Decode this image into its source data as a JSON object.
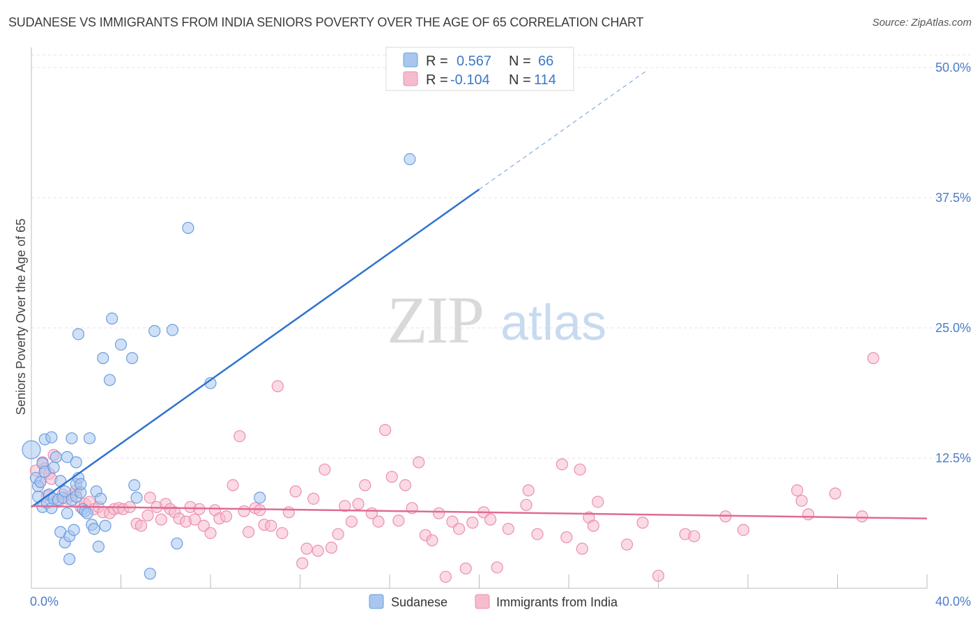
{
  "header": {
    "title": "SUDANESE VS IMMIGRANTS FROM INDIA SENIORS POVERTY OVER THE AGE OF 65 CORRELATION CHART",
    "source": "Source: ZipAtlas.com"
  },
  "watermark": {
    "zip": "ZIP",
    "atlas": "atlas"
  },
  "colors": {
    "sudanese_fill": "#a9c6ef",
    "sudanese_stroke": "#6a9ee0",
    "sudanese_line": "#2f72d0",
    "india_fill": "#f6bccd",
    "india_stroke": "#ec8fac",
    "india_line": "#e06a93",
    "accent_text": "#3c78c8"
  },
  "legend": {
    "r_label": "R =",
    "n_label": "N =",
    "rows": [
      {
        "r": "0.567",
        "n": "66"
      },
      {
        "r": "-0.104",
        "n": "114"
      }
    ]
  },
  "chart_data": {
    "type": "scatter",
    "title": "SUDANESE VS IMMIGRANTS FROM INDIA SENIORS POVERTY OVER THE AGE OF 65 CORRELATION CHART",
    "xlabel": "",
    "ylabel": "Seniors Poverty Over the Age of 65",
    "xlim": [
      0,
      40
    ],
    "ylim": [
      0,
      50
    ],
    "x_tick_labels": [
      "0.0%",
      "40.0%"
    ],
    "y_ticks": [
      12.5,
      25.0,
      37.5,
      50.0
    ],
    "y_tick_labels": [
      "12.5%",
      "25.0%",
      "37.5%",
      "50.0%"
    ],
    "grid": true,
    "legend_position": "top-center",
    "series": [
      {
        "name": "Sudanese",
        "r": 0.567,
        "n": 66,
        "trend": {
          "x0": 0,
          "y0": 7.8,
          "x1": 20,
          "y1": 38.3,
          "dash_to_x": 27.5
        },
        "points": [
          [
            0.0,
            13.3
          ],
          [
            0.2,
            10.6
          ],
          [
            0.3,
            9.8
          ],
          [
            0.3,
            8.8
          ],
          [
            0.4,
            10.2
          ],
          [
            0.5,
            12.0
          ],
          [
            0.5,
            7.8
          ],
          [
            0.6,
            11.2
          ],
          [
            0.6,
            14.3
          ],
          [
            0.7,
            8.2
          ],
          [
            0.8,
            9.0
          ],
          [
            0.9,
            7.7
          ],
          [
            0.9,
            14.5
          ],
          [
            1.0,
            11.6
          ],
          [
            1.0,
            8.6
          ],
          [
            1.1,
            12.6
          ],
          [
            1.2,
            8.5
          ],
          [
            1.3,
            5.4
          ],
          [
            1.3,
            10.3
          ],
          [
            1.4,
            8.7
          ],
          [
            1.5,
            4.4
          ],
          [
            1.5,
            9.3
          ],
          [
            1.6,
            12.6
          ],
          [
            1.6,
            7.2
          ],
          [
            1.7,
            2.8
          ],
          [
            1.7,
            5.0
          ],
          [
            1.8,
            8.5
          ],
          [
            1.8,
            14.4
          ],
          [
            1.9,
            5.6
          ],
          [
            2.0,
            12.1
          ],
          [
            2.0,
            8.8
          ],
          [
            2.0,
            10.0
          ],
          [
            2.1,
            24.4
          ],
          [
            2.1,
            10.6
          ],
          [
            2.2,
            9.2
          ],
          [
            2.2,
            10.0
          ],
          [
            2.3,
            7.6
          ],
          [
            2.4,
            7.4
          ],
          [
            2.5,
            7.2
          ],
          [
            2.6,
            14.4
          ],
          [
            2.7,
            6.1
          ],
          [
            2.8,
            5.7
          ],
          [
            2.9,
            9.3
          ],
          [
            3.0,
            4.0
          ],
          [
            3.1,
            8.6
          ],
          [
            3.2,
            22.1
          ],
          [
            3.3,
            6.0
          ],
          [
            3.5,
            20.0
          ],
          [
            3.6,
            25.9
          ],
          [
            4.0,
            23.4
          ],
          [
            4.5,
            22.1
          ],
          [
            4.6,
            9.9
          ],
          [
            4.7,
            8.7
          ],
          [
            5.3,
            1.4
          ],
          [
            5.5,
            24.7
          ],
          [
            6.3,
            24.8
          ],
          [
            6.5,
            4.3
          ],
          [
            7.0,
            34.6
          ],
          [
            8.0,
            19.7
          ],
          [
            10.2,
            8.7
          ],
          [
            16.9,
            41.2
          ]
        ]
      },
      {
        "name": "Immigrants from India",
        "r": -0.104,
        "n": 114,
        "trend": {
          "x0": 0,
          "y0": 7.9,
          "x1": 40,
          "y1": 6.7
        },
        "points": [
          [
            0.2,
            11.3
          ],
          [
            0.4,
            10.2
          ],
          [
            0.5,
            12.1
          ],
          [
            0.6,
            11.5
          ],
          [
            0.7,
            8.9
          ],
          [
            0.8,
            11.0
          ],
          [
            0.9,
            10.5
          ],
          [
            1.0,
            12.8
          ],
          [
            1.2,
            8.3
          ],
          [
            1.4,
            9.0
          ],
          [
            1.6,
            8.6
          ],
          [
            1.8,
            8.9
          ],
          [
            2.0,
            9.4
          ],
          [
            2.2,
            7.8
          ],
          [
            2.4,
            8.1
          ],
          [
            2.6,
            8.3
          ],
          [
            2.8,
            7.6
          ],
          [
            3.0,
            7.8
          ],
          [
            3.2,
            7.3
          ],
          [
            3.5,
            7.2
          ],
          [
            3.7,
            7.6
          ],
          [
            3.9,
            7.7
          ],
          [
            4.1,
            7.6
          ],
          [
            4.4,
            7.8
          ],
          [
            4.7,
            6.2
          ],
          [
            4.9,
            6.0
          ],
          [
            5.2,
            7.0
          ],
          [
            5.3,
            8.7
          ],
          [
            5.6,
            7.8
          ],
          [
            5.8,
            6.6
          ],
          [
            6.0,
            8.1
          ],
          [
            6.2,
            7.6
          ],
          [
            6.4,
            7.3
          ],
          [
            6.6,
            6.7
          ],
          [
            6.9,
            6.4
          ],
          [
            7.1,
            7.8
          ],
          [
            7.3,
            6.6
          ],
          [
            7.5,
            7.6
          ],
          [
            7.7,
            6.0
          ],
          [
            8.0,
            5.3
          ],
          [
            8.2,
            7.5
          ],
          [
            8.4,
            6.7
          ],
          [
            8.7,
            6.9
          ],
          [
            9.0,
            9.9
          ],
          [
            9.3,
            14.6
          ],
          [
            9.5,
            7.4
          ],
          [
            9.7,
            5.4
          ],
          [
            10.0,
            7.7
          ],
          [
            10.2,
            7.5
          ],
          [
            10.4,
            6.1
          ],
          [
            10.7,
            6.0
          ],
          [
            11.0,
            19.4
          ],
          [
            11.2,
            5.3
          ],
          [
            11.5,
            7.3
          ],
          [
            11.8,
            9.3
          ],
          [
            12.1,
            2.4
          ],
          [
            12.3,
            3.8
          ],
          [
            12.6,
            8.6
          ],
          [
            12.8,
            3.6
          ],
          [
            13.1,
            11.4
          ],
          [
            13.4,
            3.9
          ],
          [
            13.7,
            5.2
          ],
          [
            14.0,
            7.9
          ],
          [
            14.3,
            6.4
          ],
          [
            14.6,
            8.1
          ],
          [
            14.9,
            9.9
          ],
          [
            15.2,
            7.2
          ],
          [
            15.5,
            6.4
          ],
          [
            15.8,
            15.2
          ],
          [
            16.1,
            10.7
          ],
          [
            16.4,
            6.5
          ],
          [
            16.7,
            9.9
          ],
          [
            17.0,
            7.7
          ],
          [
            17.3,
            12.1
          ],
          [
            17.6,
            5.1
          ],
          [
            17.9,
            4.6
          ],
          [
            18.2,
            7.2
          ],
          [
            18.5,
            1.1
          ],
          [
            18.8,
            6.4
          ],
          [
            19.1,
            5.7
          ],
          [
            19.4,
            1.9
          ],
          [
            19.7,
            6.3
          ],
          [
            20.2,
            7.3
          ],
          [
            20.5,
            6.6
          ],
          [
            20.8,
            2.0
          ],
          [
            21.3,
            5.7
          ],
          [
            22.1,
            8.0
          ],
          [
            22.2,
            9.4
          ],
          [
            22.6,
            5.2
          ],
          [
            23.7,
            11.9
          ],
          [
            23.9,
            4.9
          ],
          [
            24.5,
            11.4
          ],
          [
            24.6,
            3.8
          ],
          [
            24.9,
            6.8
          ],
          [
            25.1,
            6.0
          ],
          [
            25.3,
            8.3
          ],
          [
            26.6,
            4.2
          ],
          [
            27.3,
            6.3
          ],
          [
            28.0,
            1.2
          ],
          [
            29.2,
            5.2
          ],
          [
            29.6,
            5.0
          ],
          [
            31.0,
            6.9
          ],
          [
            31.8,
            5.6
          ],
          [
            34.2,
            9.4
          ],
          [
            34.4,
            8.4
          ],
          [
            34.7,
            7.1
          ],
          [
            35.9,
            9.1
          ],
          [
            37.1,
            6.9
          ],
          [
            37.6,
            22.1
          ]
        ]
      }
    ]
  }
}
